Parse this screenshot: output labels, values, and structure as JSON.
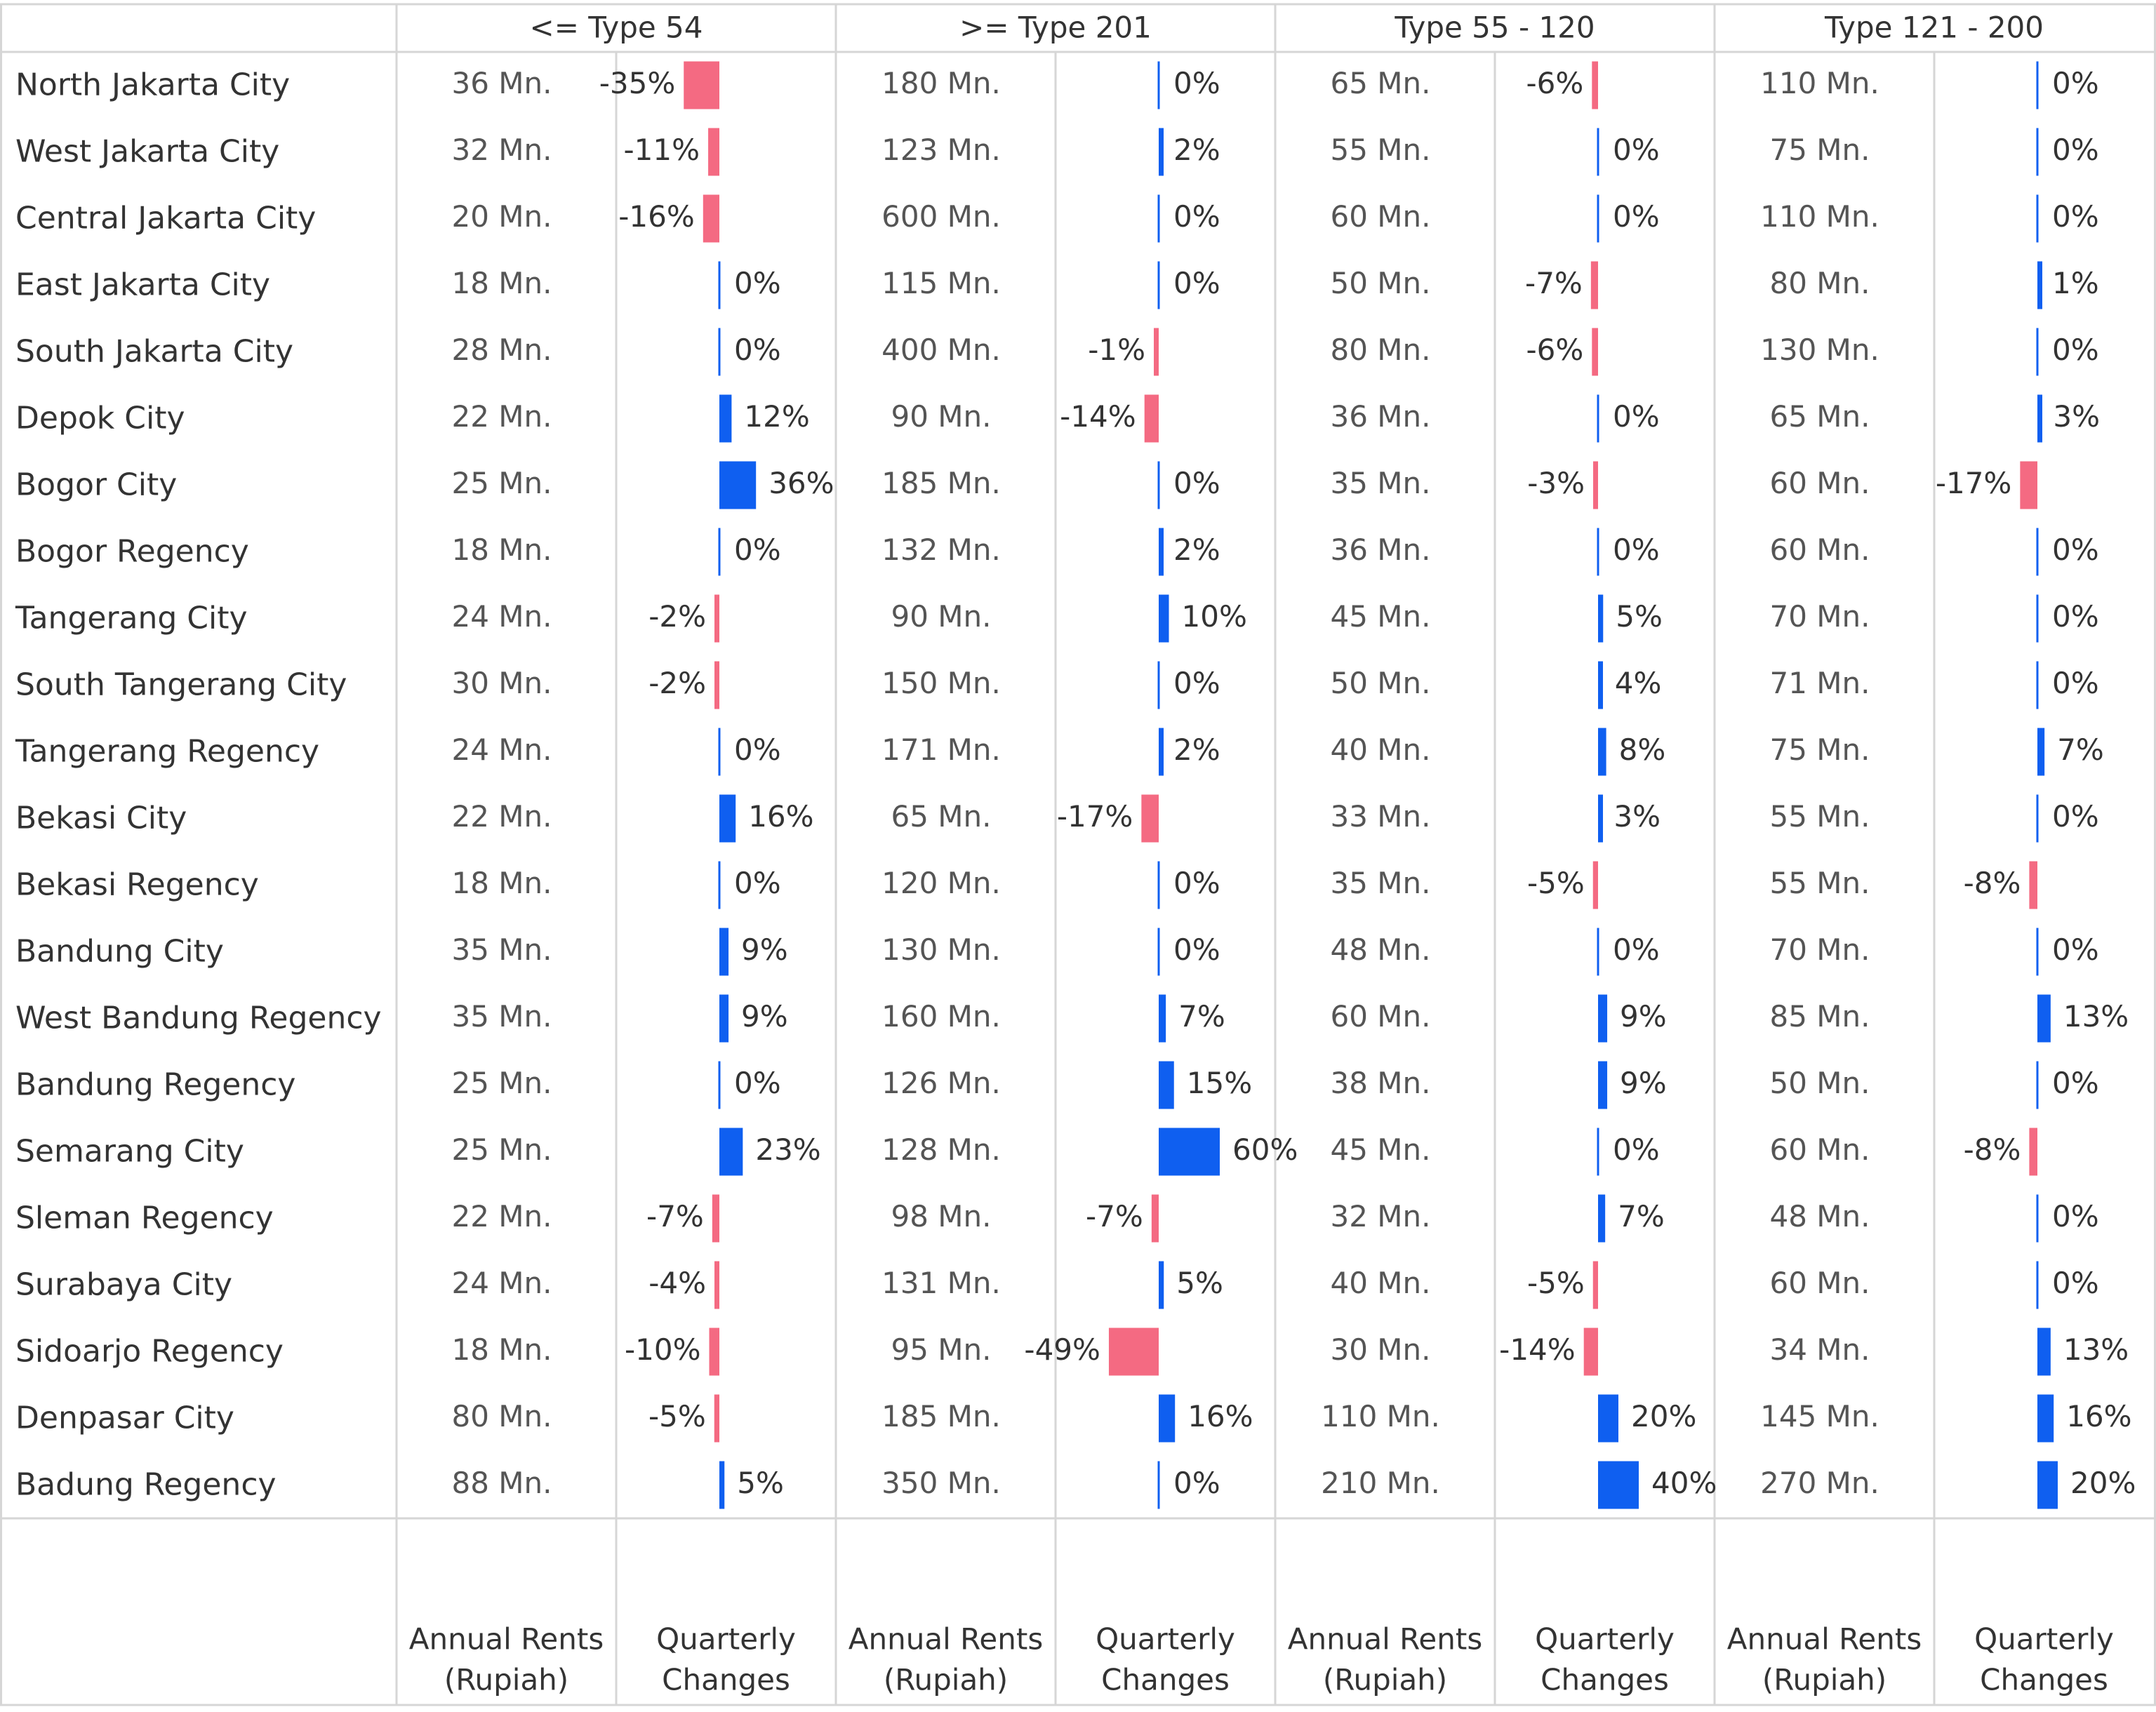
{
  "chart_data": {
    "type": "table",
    "groups": [
      "<= Type 54",
      ">= Type 201",
      "Type 55 - 120",
      "Type 121 - 200"
    ],
    "column_labels": {
      "rent": [
        "Annual Rents",
        "(Rupiah)"
      ],
      "change": [
        "Quarterly",
        "Changes"
      ]
    },
    "rows": [
      {
        "city": "North Jakarta City",
        "rents": [
          "36 Mn.",
          "180 Mn.",
          "65 Mn.",
          "110 Mn."
        ],
        "changes": [
          -35,
          0,
          -6,
          0
        ]
      },
      {
        "city": "West Jakarta City",
        "rents": [
          "32 Mn.",
          "123 Mn.",
          "55 Mn.",
          "75 Mn."
        ],
        "changes": [
          -11,
          2,
          0,
          0
        ]
      },
      {
        "city": "Central Jakarta City",
        "rents": [
          "20 Mn.",
          "600 Mn.",
          "60 Mn.",
          "110 Mn."
        ],
        "changes": [
          -16,
          0,
          0,
          0
        ]
      },
      {
        "city": "East Jakarta City",
        "rents": [
          "18 Mn.",
          "115 Mn.",
          "50 Mn.",
          "80 Mn."
        ],
        "changes": [
          0,
          0,
          -7,
          1
        ]
      },
      {
        "city": "South Jakarta City",
        "rents": [
          "28 Mn.",
          "400 Mn.",
          "80 Mn.",
          "130 Mn."
        ],
        "changes": [
          0,
          -1,
          -6,
          0
        ]
      },
      {
        "city": "Depok City",
        "rents": [
          "22 Mn.",
          "90 Mn.",
          "36 Mn.",
          "65 Mn."
        ],
        "changes": [
          12,
          -14,
          0,
          3
        ]
      },
      {
        "city": "Bogor City",
        "rents": [
          "25 Mn.",
          "185 Mn.",
          "35 Mn.",
          "60 Mn."
        ],
        "changes": [
          36,
          0,
          -3,
          -17
        ]
      },
      {
        "city": "Bogor Regency",
        "rents": [
          "18 Mn.",
          "132 Mn.",
          "36 Mn.",
          "60 Mn."
        ],
        "changes": [
          0,
          2,
          0,
          0
        ]
      },
      {
        "city": "Tangerang City",
        "rents": [
          "24 Mn.",
          "90 Mn.",
          "45 Mn.",
          "70 Mn."
        ],
        "changes": [
          -2,
          10,
          5,
          0
        ]
      },
      {
        "city": "South Tangerang City",
        "rents": [
          "30 Mn.",
          "150 Mn.",
          "50 Mn.",
          "71 Mn."
        ],
        "changes": [
          -2,
          0,
          4,
          0
        ]
      },
      {
        "city": "Tangerang Regency",
        "rents": [
          "24 Mn.",
          "171 Mn.",
          "40 Mn.",
          "75 Mn."
        ],
        "changes": [
          0,
          2,
          8,
          7
        ]
      },
      {
        "city": "Bekasi City",
        "rents": [
          "22 Mn.",
          "65 Mn.",
          "33 Mn.",
          "55 Mn."
        ],
        "changes": [
          16,
          -17,
          3,
          0
        ]
      },
      {
        "city": "Bekasi Regency",
        "rents": [
          "18 Mn.",
          "120 Mn.",
          "35 Mn.",
          "55 Mn."
        ],
        "changes": [
          0,
          0,
          -5,
          -8
        ]
      },
      {
        "city": "Bandung City",
        "rents": [
          "35 Mn.",
          "130 Mn.",
          "48 Mn.",
          "70 Mn."
        ],
        "changes": [
          9,
          0,
          0,
          0
        ]
      },
      {
        "city": "West Bandung Regency",
        "rents": [
          "35 Mn.",
          "160 Mn.",
          "60 Mn.",
          "85 Mn."
        ],
        "changes": [
          9,
          7,
          9,
          13
        ]
      },
      {
        "city": "Bandung Regency",
        "rents": [
          "25 Mn.",
          "126 Mn.",
          "38 Mn.",
          "50 Mn."
        ],
        "changes": [
          0,
          15,
          9,
          0
        ]
      },
      {
        "city": "Semarang City",
        "rents": [
          "25 Mn.",
          "128 Mn.",
          "45 Mn.",
          "60 Mn."
        ],
        "changes": [
          23,
          60,
          0,
          -8
        ]
      },
      {
        "city": "Sleman Regency",
        "rents": [
          "22 Mn.",
          "98 Mn.",
          "32 Mn.",
          "48 Mn."
        ],
        "changes": [
          -7,
          -7,
          7,
          0
        ]
      },
      {
        "city": "Surabaya City",
        "rents": [
          "24 Mn.",
          "131 Mn.",
          "40 Mn.",
          "60 Mn."
        ],
        "changes": [
          -4,
          5,
          -5,
          0
        ]
      },
      {
        "city": "Sidoarjo Regency",
        "rents": [
          "18 Mn.",
          "95 Mn.",
          "30 Mn.",
          "34 Mn."
        ],
        "changes": [
          -10,
          -49,
          -14,
          13
        ]
      },
      {
        "city": "Denpasar City",
        "rents": [
          "80 Mn.",
          "185 Mn.",
          "110 Mn.",
          "145 Mn."
        ],
        "changes": [
          -5,
          16,
          20,
          16
        ]
      },
      {
        "city": "Badung Regency",
        "rents": [
          "88 Mn.",
          "350 Mn.",
          "210 Mn.",
          "270 Mn."
        ],
        "changes": [
          5,
          0,
          40,
          20
        ]
      }
    ],
    "colors": {
      "positive": "#0F5FF0",
      "negative": "#F46A82",
      "text": "#333333",
      "muted": "#555555",
      "grid": "#D6D6D6"
    }
  }
}
